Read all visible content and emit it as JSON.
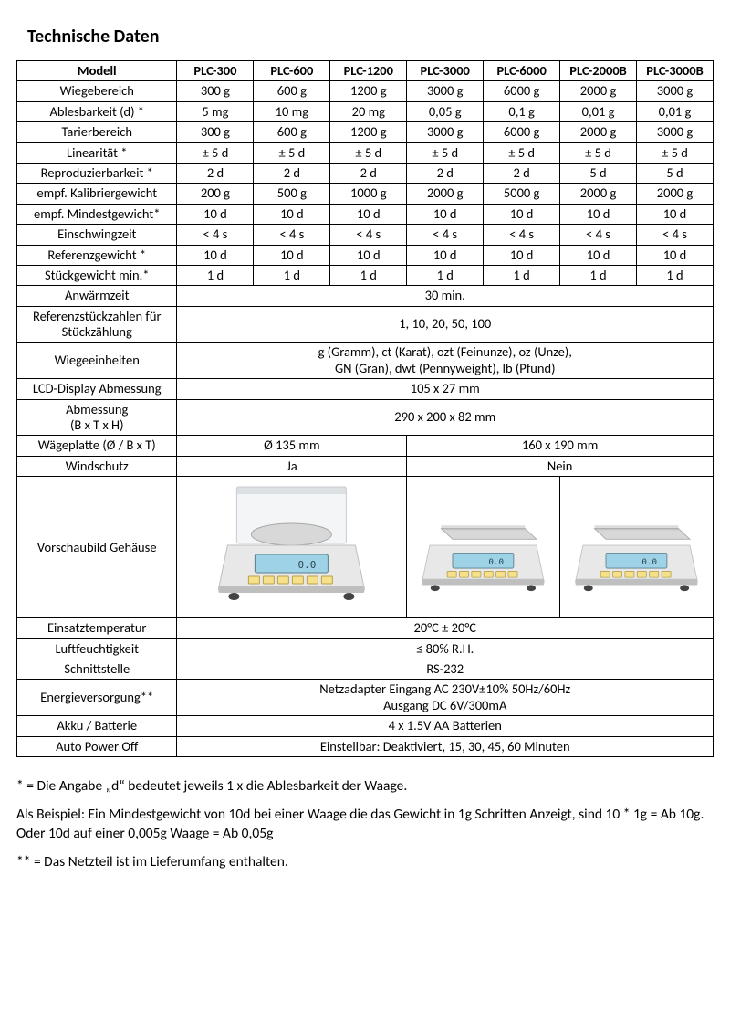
{
  "title": "Technische Daten",
  "columns": [
    "Modell",
    "PLC-300",
    "PLC-600",
    "PLC-1200",
    "PLC-3000",
    "PLC-6000",
    "PLC-2000B",
    "PLC-3000B"
  ],
  "rows_per_model": [
    {
      "label": "Wiegebereich",
      "v": [
        "300 g",
        "600 g",
        "1200 g",
        "3000 g",
        "6000 g",
        "2000 g",
        "3000 g"
      ]
    },
    {
      "label": "Ablesbarkeit (d) *",
      "v": [
        "5 mg",
        "10 mg",
        "20 mg",
        "0,05 g",
        "0,1 g",
        "0,01 g",
        "0,01 g"
      ]
    },
    {
      "label": "Tarierbereich",
      "v": [
        "300 g",
        "600 g",
        "1200 g",
        "3000 g",
        "6000 g",
        "2000 g",
        "3000 g"
      ]
    },
    {
      "label": "Linearität *",
      "v": [
        "± 5 d",
        "± 5 d",
        "± 5 d",
        "± 5 d",
        "± 5 d",
        "± 5 d",
        "± 5 d"
      ]
    },
    {
      "label": "Reproduzierbarkeit *",
      "v": [
        "2 d",
        "2 d",
        "2 d",
        "2 d",
        "2 d",
        "5 d",
        "5 d"
      ]
    },
    {
      "label": "empf. Kalibriergewicht",
      "v": [
        "200 g",
        "500 g",
        "1000 g",
        "2000 g",
        "5000 g",
        "2000 g",
        "2000 g"
      ]
    },
    {
      "label": "empf. Mindestgewicht*",
      "v": [
        "10 d",
        "10 d",
        "10 d",
        "10 d",
        "10 d",
        "10 d",
        "10 d"
      ]
    },
    {
      "label": "Einschwingzeit",
      "v": [
        "< 4 s",
        "< 4 s",
        "< 4 s",
        "< 4 s",
        "< 4 s",
        "< 4 s",
        "< 4 s"
      ]
    },
    {
      "label": "Referenzgewicht *",
      "v": [
        "10 d",
        "10 d",
        "10 d",
        "10 d",
        "10 d",
        "10 d",
        "10 d"
      ]
    },
    {
      "label": "Stückgewicht min.*",
      "v": [
        "1 d",
        "1 d",
        "1 d",
        "1 d",
        "1 d",
        "1 d",
        "1 d"
      ]
    }
  ],
  "full_rows_top": [
    {
      "label": "Anwärmzeit",
      "value": "30 min."
    },
    {
      "label": "Referenzstückzahlen für Stückzählung",
      "value": "1, 10, 20, 50, 100"
    },
    {
      "label": "Wiegeeinheiten",
      "value": "g (Gramm), ct (Karat), ozt (Feinunze), oz (Unze),\nGN (Gran), dwt (Pennyweight), lb (Pfund)"
    },
    {
      "label": "LCD-Display Abmessung",
      "value": "105 x 27 mm"
    },
    {
      "label": "Abmessung\n(B x T x H)",
      "value": "290 x 200 x 82 mm"
    }
  ],
  "split_rows": [
    {
      "label": "Wägeplatte (Ø / B x T)",
      "left": "Ø 135 mm",
      "right": "160 x 190 mm"
    },
    {
      "label": "Windschutz",
      "left": "Ja",
      "right": "Nein"
    }
  ],
  "image_row_label": "Vorschaubild Gehäuse",
  "full_rows_bottom": [
    {
      "label": "Einsatztemperatur",
      "value": "20°C ± 20°C"
    },
    {
      "label": "Luftfeuchtigkeit",
      "value": "≤ 80% R.H."
    },
    {
      "label": "Schnittstelle",
      "value": "RS-232"
    },
    {
      "label": "Energieversorgung**",
      "value": "Netzadapter Eingang AC 230V±10% 50Hz/60Hz\nAusgang DC 6V/300mA"
    },
    {
      "label": "Akku / Batterie",
      "value": "4 x 1.5V AA Batterien"
    },
    {
      "label": "Auto Power Off",
      "value": "Einstellbar: Deaktiviert, 15, 30, 45, 60 Minuten"
    }
  ],
  "notes": [
    "* = Die Angabe „d“ bedeutet jeweils 1 x die Ablesbarkeit der Waage.",
    "Als Beispiel: Ein Mindestgewicht von 10d bei einer Waage die das Gewicht in 1g Schritten Anzeigt, sind 10 * 1g = Ab 10g. Oder 10d auf einer 0,005g Waage = Ab 0,05g",
    "** = Das Netzteil ist im Lieferumfang enthalten."
  ],
  "svg_colors": {
    "body": "#e8e8e8",
    "body_edge": "#bfbfbf",
    "pan": "#d8d8d8",
    "pan_edge": "#a8a8a8",
    "display": "#9ed2e6",
    "display_edge": "#5a7d8a",
    "button": "#f6e08a",
    "button_edge": "#b8a050",
    "shield": "rgba(220,225,230,0.35)",
    "shield_edge": "#c8ccd0",
    "foot": "#444"
  }
}
